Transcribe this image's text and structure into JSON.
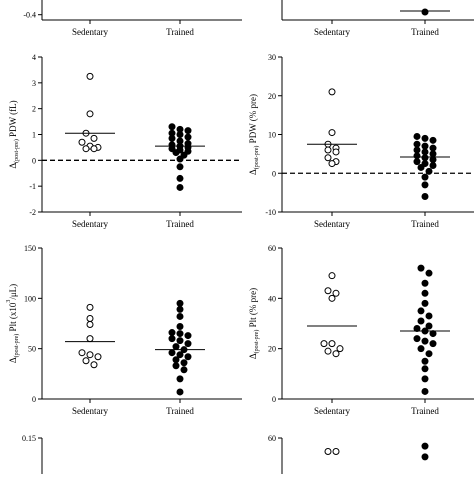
{
  "figure": {
    "background": "#ffffff",
    "marker_colors": {
      "Sedentary": "#ffffff",
      "Trained": "#000000"
    },
    "marker_stroke": "#000000"
  },
  "chart_data": [
    {
      "id": "top-left-partial",
      "type": "scatter",
      "categories": [
        "Sedentary",
        "Trained"
      ],
      "yticks": [
        "-0.4"
      ],
      "ylim": [
        -0.45,
        0.4
      ],
      "series": [
        {
          "category": "Sedentary",
          "fill": "open",
          "values": [],
          "mean": null
        },
        {
          "category": "Trained",
          "fill": "filled",
          "values": [],
          "mean": null
        }
      ],
      "zero_line": false
    },
    {
      "id": "top-right-partial",
      "type": "scatter",
      "categories": [
        "Sedentary",
        "Trained"
      ],
      "yticks": [],
      "ylim": [
        -2.5,
        2
      ],
      "series": [
        {
          "category": "Sedentary",
          "fill": "open",
          "values": [],
          "mean": null
        },
        {
          "category": "Trained",
          "fill": "filled",
          "values": [
            -2.1
          ],
          "mean": -2.05
        }
      ],
      "zero_line": false
    },
    {
      "id": "pdw-fl",
      "type": "scatter",
      "ylabel_parts": [
        "Δ",
        "(post-pre)",
        " PDW (fL)"
      ],
      "categories": [
        "Sedentary",
        "Trained"
      ],
      "yticks": [
        "-2",
        "-1",
        "0",
        "1",
        "2",
        "3",
        "4"
      ],
      "ylim": [
        -2,
        4
      ],
      "zero_line": true,
      "series": [
        {
          "category": "Sedentary",
          "fill": "open",
          "values": [
            3.25,
            1.8,
            1.05,
            0.85,
            0.7,
            0.55,
            0.5,
            0.45,
            0.45
          ],
          "mean": 1.05
        },
        {
          "category": "Trained",
          "fill": "filled",
          "values": [
            1.3,
            1.2,
            1.15,
            1.05,
            1.0,
            0.9,
            0.85,
            0.75,
            0.65,
            0.6,
            0.55,
            0.5,
            0.45,
            0.4,
            0.35,
            0.3,
            0.2,
            0.05,
            -0.25,
            -0.7,
            -1.05
          ],
          "mean": 0.55
        }
      ]
    },
    {
      "id": "pdw-pct",
      "type": "scatter",
      "ylabel_parts": [
        "Δ",
        "(post-pre)",
        " PDW (% pre)"
      ],
      "categories": [
        "Sedentary",
        "Trained"
      ],
      "yticks": [
        "-10",
        "0",
        "10",
        "20",
        "30"
      ],
      "ylim": [
        -10,
        30
      ],
      "zero_line": true,
      "series": [
        {
          "category": "Sedentary",
          "fill": "open",
          "values": [
            21,
            10.5,
            7.5,
            6.5,
            6.0,
            5.5,
            4.0,
            3.0,
            2.5
          ],
          "mean": 7.5
        },
        {
          "category": "Trained",
          "fill": "filled",
          "values": [
            9.5,
            9.0,
            8.5,
            7.5,
            7.0,
            6.5,
            6.0,
            5.5,
            5.0,
            4.5,
            4.0,
            3.5,
            3.0,
            2.5,
            2.0,
            1.5,
            0.5,
            -1.0,
            -3.0,
            -6.0
          ],
          "mean": 4.2
        }
      ]
    },
    {
      "id": "plt-abs",
      "type": "scatter",
      "ylabel_parts": [
        "Δ",
        "(post-pre)",
        " Plt (x10",
        "3",
        "/μL)"
      ],
      "categories": [
        "Sedentary",
        "Trained"
      ],
      "yticks": [
        "0",
        "50",
        "100",
        "150"
      ],
      "ylim": [
        0,
        150
      ],
      "zero_line": false,
      "series": [
        {
          "category": "Sedentary",
          "fill": "open",
          "values": [
            91,
            80,
            74,
            60,
            46,
            44,
            42,
            38,
            34
          ],
          "mean": 57
        },
        {
          "category": "Trained",
          "fill": "filled",
          "values": [
            95,
            89,
            82,
            72,
            66,
            65,
            63,
            60,
            58,
            55,
            52,
            49,
            46,
            44,
            42,
            39,
            36,
            33,
            29,
            20,
            7
          ],
          "mean": 49
        }
      ]
    },
    {
      "id": "plt-pct",
      "type": "scatter",
      "ylabel_parts": [
        "Δ",
        "(post-pre)",
        " Plt (% pre)"
      ],
      "categories": [
        "Sedentary",
        "Trained"
      ],
      "yticks": [
        "0",
        "20",
        "40",
        "60"
      ],
      "ylim": [
        0,
        60
      ],
      "zero_line": false,
      "series": [
        {
          "category": "Sedentary",
          "fill": "open",
          "values": [
            49,
            43,
            42,
            40,
            22,
            22,
            20,
            19,
            18
          ],
          "mean": 29
        },
        {
          "category": "Trained",
          "fill": "filled",
          "values": [
            52,
            50,
            46,
            42,
            38,
            35,
            33,
            31,
            29,
            28,
            27,
            26,
            24,
            23,
            22,
            20,
            18,
            15,
            12,
            8,
            3
          ],
          "mean": 27
        }
      ]
    },
    {
      "id": "bottom-left-partial",
      "type": "scatter",
      "categories": [],
      "yticks": [
        "0.15"
      ],
      "ylim": [
        0,
        0.15
      ],
      "zero_line": false,
      "series": []
    },
    {
      "id": "bottom-right-partial",
      "type": "scatter",
      "categories": [],
      "yticks": [
        "60"
      ],
      "ylim": [
        0,
        60
      ],
      "zero_line": false,
      "series": [
        {
          "category": "Sedentary",
          "fill": "open",
          "values": [
            55,
            55
          ],
          "mean": null
        },
        {
          "category": "Trained",
          "fill": "filled",
          "values": [
            57,
            53
          ],
          "mean": null
        }
      ]
    }
  ]
}
